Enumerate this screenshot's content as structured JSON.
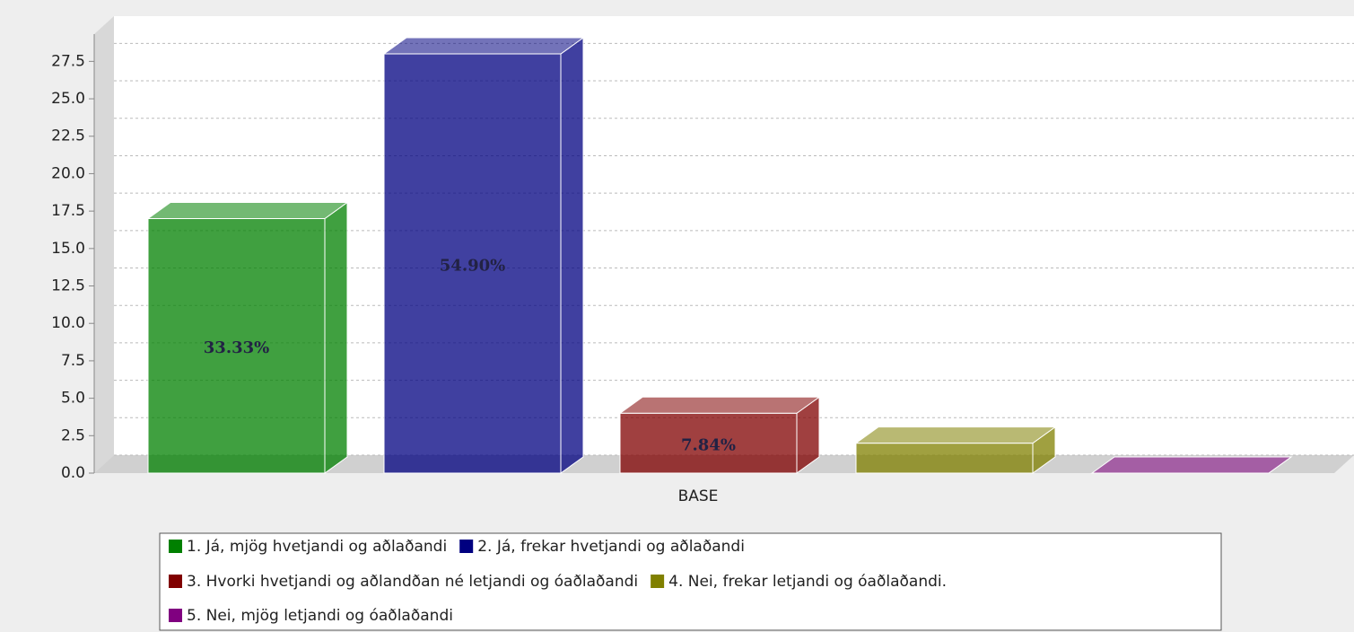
{
  "chart_data": {
    "type": "bar3d",
    "categories": [
      "BASE"
    ],
    "series": [
      {
        "name": "1. Já, mjög hvetjandi og aðlaðandi",
        "color": "#008000",
        "values": [
          17
        ],
        "value_labels": [
          "33.33%"
        ]
      },
      {
        "name": "2. Já, frekar hvetjandi og aðlaðandi",
        "color": "#000080",
        "values": [
          28
        ],
        "value_labels": [
          "54.90%"
        ]
      },
      {
        "name": "3. Hvorki hvetjandi og aðlandðan né letjandi og óaðlaðandi",
        "color": "#800000",
        "values": [
          4
        ],
        "value_labels": [
          "7.84%"
        ]
      },
      {
        "name": "4. Nei, frekar letjandi og óaðlaðandi.",
        "color": "#808000",
        "values": [
          2
        ]
      },
      {
        "name": "5. Nei, mjög letjandi og óaðlaðandi",
        "color": "#800080",
        "values": [
          0
        ]
      }
    ],
    "ylim": [
      0,
      29.8
    ],
    "yticks": [
      {
        "value": 0,
        "label": "0.0"
      },
      2.5,
      {
        "value": 5,
        "label": "5.0"
      },
      7.5,
      {
        "value": 10,
        "label": "10.0"
      },
      12.5,
      {
        "value": 15,
        "label": "15.0"
      },
      17.5,
      {
        "value": 20,
        "label": "20.0"
      },
      22.5,
      {
        "value": 25,
        "label": "25.0"
      },
      27.5
    ],
    "grid": true
  }
}
